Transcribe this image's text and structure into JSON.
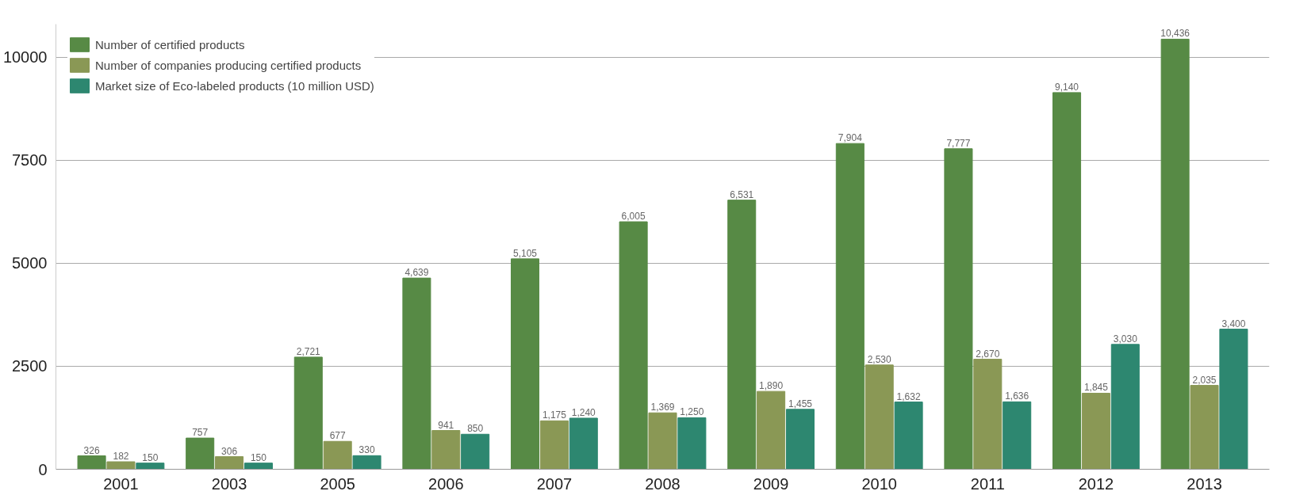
{
  "chart_data": {
    "type": "bar",
    "categories": [
      "2001",
      "2003",
      "2005",
      "2006",
      "2007",
      "2008",
      "2009",
      "2010",
      "2011",
      "2012",
      "2013"
    ],
    "series": [
      {
        "name": "Number of certified products",
        "color": "#578a45",
        "values": [
          326,
          757,
          2721,
          4639,
          5105,
          6005,
          6531,
          7904,
          7777,
          9140,
          10436
        ],
        "value_labels": [
          "326",
          "757",
          "2,721",
          "4,639",
          "5,105",
          "6,005",
          "6,531",
          "7,904",
          "7,777",
          "9,140",
          "10,436"
        ]
      },
      {
        "name": "Number of companies producing certified products",
        "color": "#8a9855",
        "values": [
          182,
          306,
          677,
          941,
          1175,
          1369,
          1890,
          2530,
          2670,
          1845,
          2035
        ],
        "value_labels": [
          "182",
          "306",
          "677",
          "941",
          "1,175",
          "1,369",
          "1,890",
          "2,530",
          "2,670",
          "1,845",
          "2,035"
        ]
      },
      {
        "name": "Market size of Eco-labeled products (10 million USD)",
        "color": "#2d8770",
        "values": [
          150,
          150,
          330,
          850,
          1240,
          1250,
          1455,
          1632,
          1636,
          3030,
          3400
        ],
        "value_labels": [
          "150",
          "150",
          "330",
          "850",
          "1,240",
          "1,250",
          "1,455",
          "1,632",
          "1,636",
          "3,030",
          "3,400"
        ]
      }
    ],
    "ylim": [
      0,
      10800
    ],
    "yticks": [
      0,
      2500,
      5000,
      7500,
      10000
    ],
    "grid": "y",
    "legend": "top left"
  }
}
